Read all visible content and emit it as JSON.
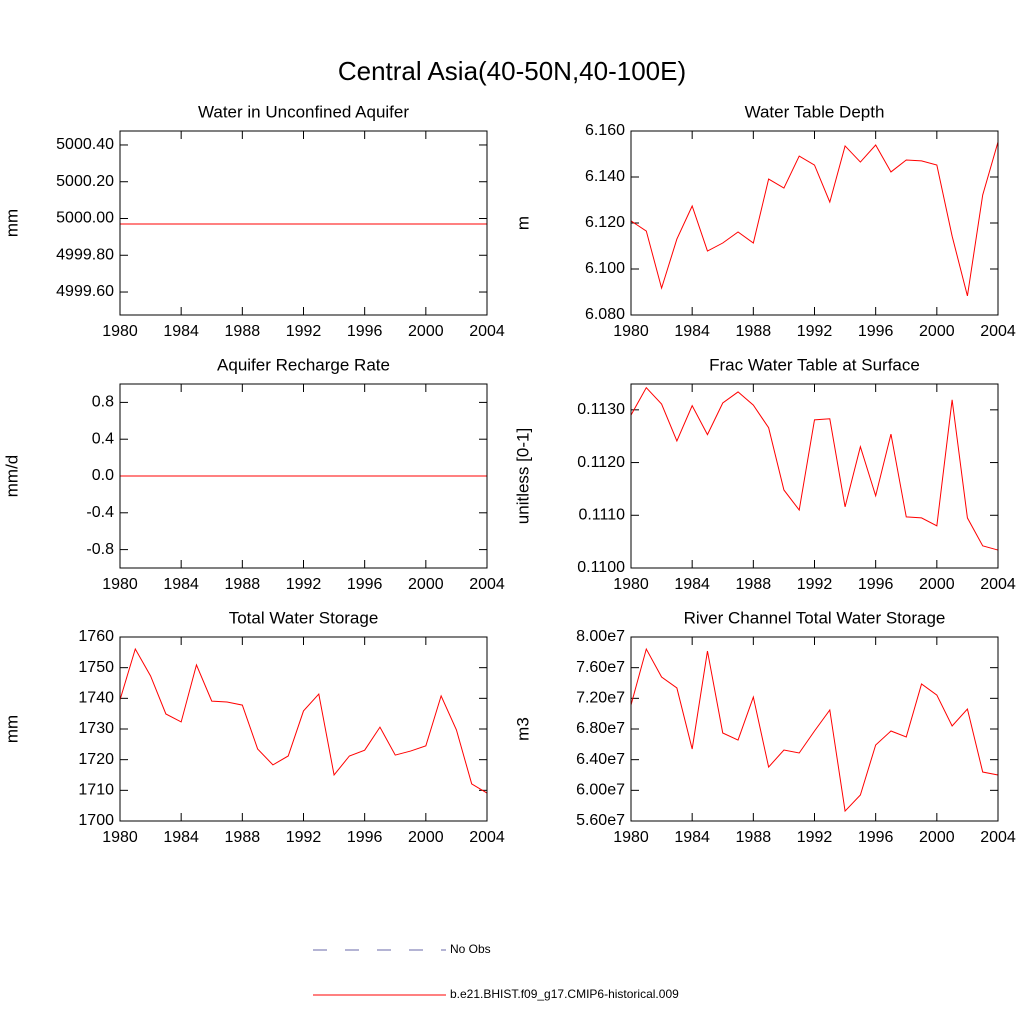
{
  "title": "Central Asia(40-50N,40-100E)",
  "chart_data": [
    {
      "type": "line",
      "title": "Water in Unconfined Aquifer",
      "ylabel": "mm",
      "color": "#ff0000",
      "x": [
        1980,
        1981,
        1982,
        1983,
        1984,
        1985,
        1986,
        1987,
        1988,
        1989,
        1990,
        1991,
        1992,
        1993,
        1994,
        1995,
        1996,
        1997,
        1998,
        1999,
        2000,
        2001,
        2002,
        2003,
        2004
      ],
      "values": [
        4999.97,
        4999.97,
        4999.97,
        4999.97,
        4999.97,
        4999.97,
        4999.97,
        4999.97,
        4999.97,
        4999.97,
        4999.97,
        4999.97,
        4999.97,
        4999.97,
        4999.97,
        4999.97,
        4999.97,
        4999.97,
        4999.97,
        4999.97,
        4999.97,
        4999.97,
        4999.97,
        4999.97,
        4999.97
      ],
      "xlim": [
        1980,
        2004
      ],
      "xticks": [
        1980,
        1984,
        1988,
        1992,
        1996,
        2000,
        2004
      ],
      "ylim": [
        4999.475,
        5000.476
      ],
      "yticks": [
        {
          "value": 4999.6,
          "label": "4999.60"
        },
        {
          "value": 4999.8,
          "label": "4999.80"
        },
        {
          "value": 5000,
          "label": "5000.00"
        },
        {
          "value": 5000.2,
          "label": "5000.20"
        },
        {
          "value": 5000.4,
          "label": "5000.40"
        }
      ]
    },
    {
      "type": "line",
      "title": "Water Table Depth",
      "ylabel": "m",
      "color": "#ff0000",
      "x": [
        1980,
        1981,
        1982,
        1983,
        1984,
        1985,
        1986,
        1987,
        1988,
        1989,
        1990,
        1991,
        1992,
        1993,
        1994,
        1995,
        1996,
        1997,
        1998,
        1999,
        2000,
        2001,
        2002,
        2003,
        2004
      ],
      "values": [
        6.1209,
        6.1165,
        6.0917,
        6.113,
        6.1274,
        6.1078,
        6.1113,
        6.1161,
        6.1113,
        6.1391,
        6.1352,
        6.1491,
        6.1452,
        6.1291,
        6.1535,
        6.1465,
        6.1539,
        6.1422,
        6.1474,
        6.147,
        6.1452,
        6.1143,
        6.0883,
        6.1322,
        6.1552
      ],
      "xlim": [
        1980,
        2004
      ],
      "xticks": [
        1980,
        1984,
        1988,
        1992,
        1996,
        2000,
        2004
      ],
      "ylim": [
        6.08,
        6.16
      ],
      "yticks": [
        {
          "value": 6.08,
          "label": "6.080"
        },
        {
          "value": 6.1,
          "label": "6.100"
        },
        {
          "value": 6.12,
          "label": "6.120"
        },
        {
          "value": 6.14,
          "label": "6.140"
        },
        {
          "value": 6.16,
          "label": "6.160"
        }
      ]
    },
    {
      "type": "line",
      "title": "Aquifer Recharge Rate",
      "ylabel": "mm/d",
      "color": "#ff0000",
      "x": [
        1980,
        1981,
        1982,
        1983,
        1984,
        1985,
        1986,
        1987,
        1988,
        1989,
        1990,
        1991,
        1992,
        1993,
        1994,
        1995,
        1996,
        1997,
        1998,
        1999,
        2000,
        2001,
        2002,
        2003,
        2004
      ],
      "values": [
        0,
        0,
        0,
        0,
        0,
        0,
        0,
        0,
        0,
        0,
        0,
        0,
        0,
        0,
        0,
        0,
        0,
        0,
        0,
        0,
        0,
        0,
        0,
        0,
        0
      ],
      "xlim": [
        1980,
        2004
      ],
      "xticks": [
        1980,
        1984,
        1988,
        1992,
        1996,
        2000,
        2004
      ],
      "ylim": [
        -1,
        1
      ],
      "yticks": [
        -0.8,
        -0.4,
        {
          "value": 0,
          "label": "0.0"
        },
        0.4,
        0.8
      ]
    },
    {
      "type": "line",
      "title": "Frac Water Table at Surface",
      "ylabel": "unitless [0-1]",
      "color": "#ff0000",
      "x": [
        1980,
        1981,
        1982,
        1983,
        1984,
        1985,
        1986,
        1987,
        1988,
        1989,
        1990,
        1991,
        1992,
        1993,
        1994,
        1995,
        1996,
        1997,
        1998,
        1999,
        2000,
        2001,
        2002,
        2003,
        2004
      ],
      "values": [
        0.1129,
        0.11342,
        0.11311,
        0.11241,
        0.11308,
        0.11253,
        0.11313,
        0.11334,
        0.11309,
        0.11266,
        0.11148,
        0.1111,
        0.11281,
        0.11283,
        0.11116,
        0.1123,
        0.11137,
        0.11254,
        0.11097,
        0.11095,
        0.1108,
        0.11319,
        0.11095,
        0.11042,
        0.11034
      ],
      "xlim": [
        1980,
        2004
      ],
      "xticks": [
        1980,
        1984,
        1988,
        1992,
        1996,
        2000,
        2004
      ],
      "ylim": [
        0.11,
        0.11349
      ],
      "yticks": [
        {
          "value": 0.11,
          "label": "0.1100"
        },
        {
          "value": 0.111,
          "label": "0.1110"
        },
        {
          "value": 0.112,
          "label": "0.1120"
        },
        {
          "value": 0.113,
          "label": "0.1130"
        }
      ]
    },
    {
      "type": "line",
      "title": "Total Water Storage",
      "ylabel": "mm",
      "color": "#ff0000",
      "x": [
        1980,
        1981,
        1982,
        1983,
        1984,
        1985,
        1986,
        1987,
        1988,
        1989,
        1990,
        1991,
        1992,
        1993,
        1994,
        1995,
        1996,
        1997,
        1998,
        1999,
        2000,
        2001,
        2002,
        2003,
        2004
      ],
      "values": [
        1739.5,
        1756.1,
        1747.3,
        1734.9,
        1732.3,
        1750.9,
        1739.1,
        1738.8,
        1737.8,
        1723.5,
        1718.3,
        1721.2,
        1735.9,
        1741.4,
        1715,
        1721.2,
        1723.1,
        1730.6,
        1721.5,
        1722.8,
        1724.5,
        1740.8,
        1729.7,
        1712.1,
        1709.1
      ],
      "xlim": [
        1980,
        2004
      ],
      "xticks": [
        1980,
        1984,
        1988,
        1992,
        1996,
        2000,
        2004
      ],
      "ylim": [
        1700,
        1760
      ],
      "yticks": [
        1700,
        1710,
        1720,
        1730,
        1740,
        1750,
        1760
      ]
    },
    {
      "type": "line",
      "title": "River Channel Total Water Storage",
      "ylabel": "m3",
      "color": "#ff0000",
      "x": [
        1980,
        1981,
        1982,
        1983,
        1984,
        1985,
        1986,
        1987,
        1988,
        1989,
        1990,
        1991,
        1992,
        1993,
        1994,
        1995,
        1996,
        1997,
        1998,
        1999,
        2000,
        2001,
        2002,
        2003,
        2004
      ],
      "values": [
        71130000,
        78430000,
        74780000,
        73350000,
        65390000,
        78170000,
        67480000,
        66560000,
        72170000,
        63040000,
        65260000,
        64870000,
        67740000,
        70480000,
        57300000,
        59390000,
        65910000,
        67740000,
        66960000,
        73870000,
        72430000,
        68390000,
        70610000,
        62390000,
        62000000
      ],
      "xlim": [
        1980,
        2004
      ],
      "xticks": [
        1980,
        1984,
        1988,
        1992,
        1996,
        2000,
        2004
      ],
      "ylim": [
        56000000,
        80000000
      ],
      "yticks": [
        {
          "value": 56000000,
          "label": "5.60e7"
        },
        {
          "value": 60000000,
          "label": "6.00e7"
        },
        {
          "value": 64000000,
          "label": "6.40e7"
        },
        {
          "value": 68000000,
          "label": "6.80e7"
        },
        {
          "value": 72000000,
          "label": "7.20e7"
        },
        {
          "value": 76000000,
          "label": "7.60e7"
        },
        {
          "value": 80000000,
          "label": "8.00e7"
        }
      ]
    }
  ],
  "legend": [
    {
      "name": "No Obs",
      "color": "#6a6aa8",
      "dashed": true
    },
    {
      "name": "b.e21.BHIST.f09_g17.CMIP6-historical.009",
      "color": "#ff0000",
      "dashed": false
    }
  ]
}
